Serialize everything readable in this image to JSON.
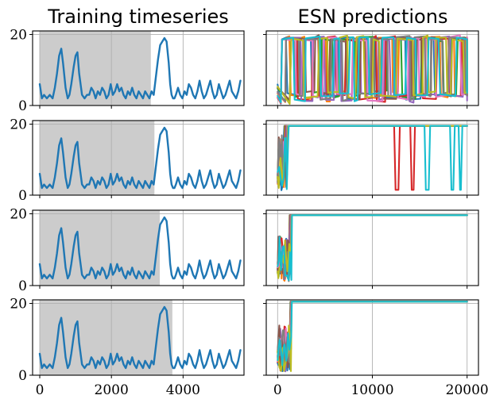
{
  "chart_data": [
    {
      "type": "line",
      "column_title": "Training timeseries",
      "columns": [
        {
          "title": "Training timeseries"
        },
        {
          "title": "ESN predictions"
        }
      ],
      "rows": [
        {
          "row": 1,
          "training_window_end": 3100
        },
        {
          "row": 2,
          "training_window_end": 3200
        },
        {
          "row": 3,
          "training_window_end": 3350
        },
        {
          "row": 4,
          "training_window_end": 3700
        }
      ],
      "left_axes": {
        "xlim": [
          -200,
          5700
        ],
        "ylim": [
          0,
          21
        ],
        "x_ticks": [
          0,
          2000,
          4000
        ],
        "x_tick_labels": [
          "0",
          "2000",
          "4000"
        ],
        "y_ticks": [
          0,
          20
        ],
        "y_tick_labels": [
          "0",
          "20"
        ],
        "grid": true,
        "shade_color": "#cccccc",
        "series_color": "#1f77b4"
      },
      "timeseries": {
        "x": [
          0,
          60,
          120,
          200,
          280,
          360,
          420,
          480,
          540,
          600,
          650,
          720,
          780,
          830,
          880,
          950,
          1000,
          1050,
          1100,
          1180,
          1250,
          1320,
          1380,
          1440,
          1500,
          1560,
          1620,
          1680,
          1740,
          1800,
          1860,
          1920,
          1980,
          2040,
          2100,
          2160,
          2220,
          2280,
          2340,
          2400,
          2460,
          2520,
          2580,
          2640,
          2700,
          2760,
          2820,
          2880,
          2940,
          3000,
          3060,
          3120,
          3180,
          3240,
          3300,
          3360,
          3420,
          3480,
          3540,
          3600,
          3640,
          3680,
          3720,
          3760,
          3800,
          3860,
          3920,
          3980,
          4040,
          4100,
          4160,
          4220,
          4280,
          4340,
          4400,
          4460,
          4520,
          4580,
          4640,
          4700,
          4760,
          4820,
          4880,
          4940,
          5000,
          5060,
          5120,
          5180,
          5240,
          5300,
          5360,
          5420,
          5480,
          5540,
          5600
        ],
        "y": [
          6,
          2,
          3,
          2,
          3,
          2,
          5,
          9,
          14,
          16,
          12,
          5,
          2,
          3,
          6,
          11,
          14,
          15,
          9,
          3,
          2,
          3,
          3,
          5,
          4,
          2,
          4,
          3,
          5,
          4,
          2,
          3,
          6,
          3,
          4,
          6,
          4,
          5,
          3,
          2,
          4,
          3,
          5,
          3,
          2,
          4,
          3,
          2,
          4,
          3,
          2,
          4,
          3,
          8,
          13,
          17,
          18,
          19,
          18,
          12,
          6,
          3,
          2,
          2,
          3,
          5,
          3,
          2,
          4,
          3,
          6,
          5,
          3,
          2,
          4,
          7,
          4,
          2,
          3,
          5,
          7,
          4,
          2,
          3,
          6,
          4,
          2,
          3,
          5,
          7,
          4,
          3,
          2,
          4,
          7
        ]
      },
      "right_axes": {
        "xlim": [
          -1200,
          21200
        ],
        "ylim": [
          0,
          21
        ],
        "x_ticks": [
          0,
          10000,
          20000
        ],
        "x_tick_labels": [
          "0",
          "10000",
          "20000"
        ],
        "y_ticks": [
          0,
          20
        ],
        "grid": true,
        "ensemble_colors": [
          "#1f77b4",
          "#ff7f0e",
          "#2ca02c",
          "#d62728",
          "#9467bd",
          "#8c564b",
          "#e377c2",
          "#7f7f7f",
          "#bcbd22",
          "#17becf"
        ],
        "plateau_levels": [
          19,
          19.5,
          19.6,
          20.5
        ]
      }
    }
  ]
}
